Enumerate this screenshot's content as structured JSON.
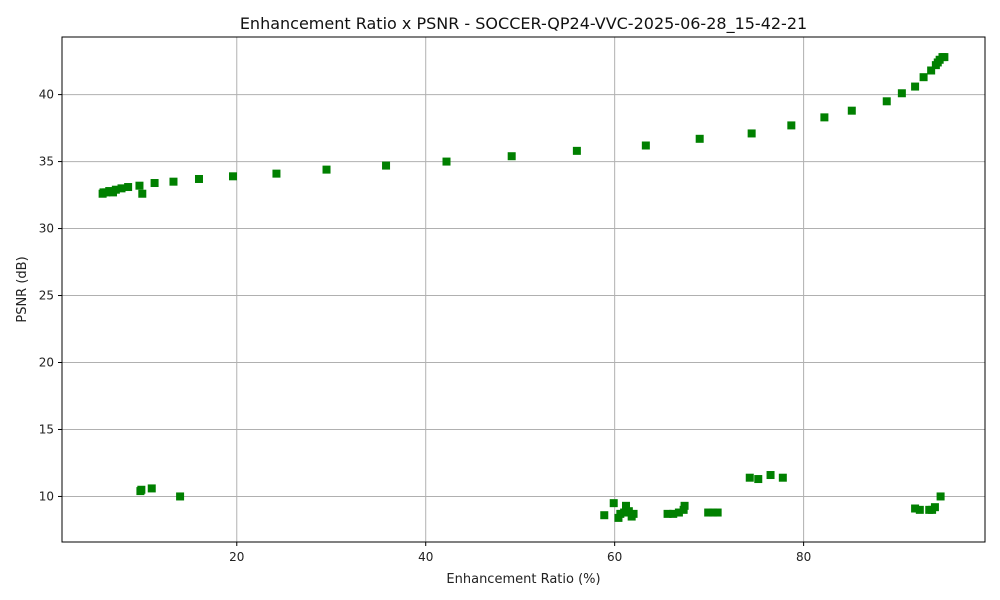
{
  "chart_data": {
    "type": "scatter",
    "title": "Enhancement Ratio x PSNR - SOCCER-QP24-VVC-2025-06-28_15-42-21",
    "xlabel": "Enhancement Ratio (%)",
    "ylabel": "PSNR (dB)",
    "xlim": [
      1.5,
      99.2
    ],
    "ylim": [
      6.6,
      44.3
    ],
    "xticks": [
      20,
      40,
      60,
      80
    ],
    "yticks": [
      10,
      15,
      20,
      25,
      30,
      35,
      40
    ],
    "grid": true,
    "marker": "square",
    "color": "#008000",
    "series": [
      {
        "name": "",
        "points": [
          [
            5.8,
            32.6
          ],
          [
            5.9,
            32.7
          ],
          [
            6.2,
            32.7
          ],
          [
            6.5,
            32.8
          ],
          [
            6.9,
            32.7
          ],
          [
            7.2,
            32.9
          ],
          [
            7.8,
            33.0
          ],
          [
            8.5,
            33.1
          ],
          [
            9.7,
            33.2
          ],
          [
            10.0,
            32.6
          ],
          [
            11.3,
            33.4
          ],
          [
            13.3,
            33.5
          ],
          [
            16.0,
            33.7
          ],
          [
            19.6,
            33.9
          ],
          [
            24.2,
            34.1
          ],
          [
            29.5,
            34.4
          ],
          [
            35.8,
            34.7
          ],
          [
            42.2,
            35.0
          ],
          [
            49.1,
            35.4
          ],
          [
            56.0,
            35.8
          ],
          [
            63.3,
            36.2
          ],
          [
            69.0,
            36.7
          ],
          [
            74.5,
            37.1
          ],
          [
            78.7,
            37.7
          ],
          [
            82.2,
            38.3
          ],
          [
            85.1,
            38.8
          ],
          [
            88.8,
            39.5
          ],
          [
            90.4,
            40.1
          ],
          [
            91.8,
            40.6
          ],
          [
            92.7,
            41.3
          ],
          [
            93.5,
            41.8
          ],
          [
            94.0,
            42.2
          ],
          [
            94.2,
            42.4
          ],
          [
            94.4,
            42.6
          ],
          [
            94.7,
            42.8
          ],
          [
            94.9,
            42.8
          ],
          [
            9.8,
            10.4
          ],
          [
            9.9,
            10.5
          ],
          [
            11.0,
            10.6
          ],
          [
            14.0,
            10.0
          ],
          [
            58.9,
            8.6
          ],
          [
            59.9,
            9.5
          ],
          [
            60.4,
            8.4
          ],
          [
            60.6,
            8.7
          ],
          [
            61.0,
            8.8
          ],
          [
            61.2,
            9.3
          ],
          [
            61.5,
            8.9
          ],
          [
            61.8,
            8.5
          ],
          [
            62.0,
            8.7
          ],
          [
            65.6,
            8.7
          ],
          [
            66.2,
            8.7
          ],
          [
            66.8,
            8.8
          ],
          [
            67.3,
            9.0
          ],
          [
            67.4,
            9.3
          ],
          [
            69.9,
            8.8
          ],
          [
            70.4,
            8.8
          ],
          [
            70.9,
            8.8
          ],
          [
            74.3,
            11.4
          ],
          [
            75.2,
            11.3
          ],
          [
            76.5,
            11.6
          ],
          [
            77.8,
            11.4
          ],
          [
            91.8,
            9.1
          ],
          [
            92.3,
            9.0
          ],
          [
            93.3,
            9.0
          ],
          [
            93.6,
            9.0
          ],
          [
            93.9,
            9.2
          ],
          [
            94.5,
            10.0
          ]
        ]
      }
    ]
  }
}
